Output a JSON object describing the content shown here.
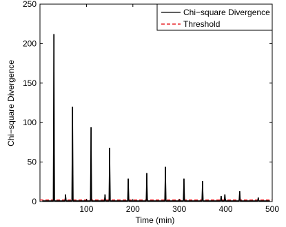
{
  "chart_data": {
    "type": "line",
    "xlabel": "Time (min)",
    "ylabel": "Chi−square Divergence",
    "xlim": [
      0,
      500
    ],
    "ylim": [
      0,
      250
    ],
    "xticks": [
      100,
      200,
      300,
      400,
      500
    ],
    "yticks": [
      0,
      50,
      100,
      150,
      200,
      250
    ],
    "grid": false,
    "legend_position": "top-right",
    "series": [
      {
        "name": "Chi−square Divergence",
        "style": "solid",
        "color": "#000000",
        "baseline": 1,
        "spikes": [
          {
            "x": 30,
            "y": 212
          },
          {
            "x": 55,
            "y": 9
          },
          {
            "x": 70,
            "y": 120
          },
          {
            "x": 110,
            "y": 94
          },
          {
            "x": 140,
            "y": 9
          },
          {
            "x": 150,
            "y": 68
          },
          {
            "x": 190,
            "y": 29
          },
          {
            "x": 230,
            "y": 36
          },
          {
            "x": 270,
            "y": 44
          },
          {
            "x": 310,
            "y": 29
          },
          {
            "x": 350,
            "y": 26
          },
          {
            "x": 390,
            "y": 7
          },
          {
            "x": 398,
            "y": 9
          },
          {
            "x": 430,
            "y": 13
          },
          {
            "x": 470,
            "y": 5
          }
        ]
      },
      {
        "name": "Threshold",
        "style": "dashed",
        "color": "#e8262b",
        "value": 2
      }
    ]
  }
}
